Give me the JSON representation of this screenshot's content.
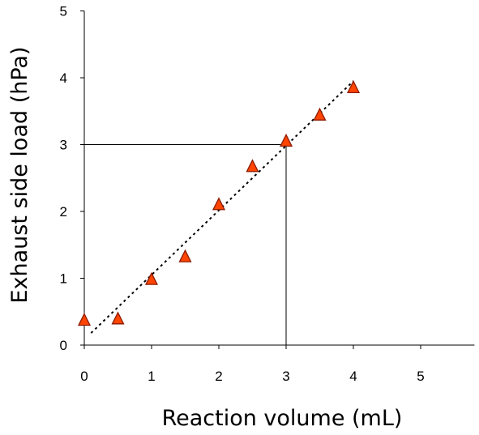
{
  "chart_data": {
    "type": "scatter",
    "xlabel": "Reaction volume (mL)",
    "ylabel": "Exhaust side load (hPa)",
    "xlim": [
      0,
      5.8
    ],
    "ylim": [
      0,
      5
    ],
    "x_ticks": [
      "0",
      "1",
      "2",
      "3",
      "4",
      "5"
    ],
    "y_ticks": [
      "0",
      "1",
      "2",
      "3",
      "4",
      "5"
    ],
    "grid": false,
    "legend": "none",
    "marker": "triangle",
    "marker_color": "#ff4500",
    "marker_edge_color": "#8b1a00",
    "series": [
      {
        "x": [
          0,
          0.5,
          1,
          1.5,
          2,
          2.5,
          3,
          3.5,
          4
        ],
        "y": [
          0.37,
          0.39,
          0.98,
          1.32,
          2.1,
          2.67,
          3.05,
          3.44,
          3.85
        ]
      }
    ],
    "trendline": {
      "style": "dotted",
      "x": [
        0.1,
        4.0
      ],
      "y": [
        0.18,
        3.95
      ]
    },
    "reference_lines": {
      "x": 3,
      "y": 3
    }
  }
}
